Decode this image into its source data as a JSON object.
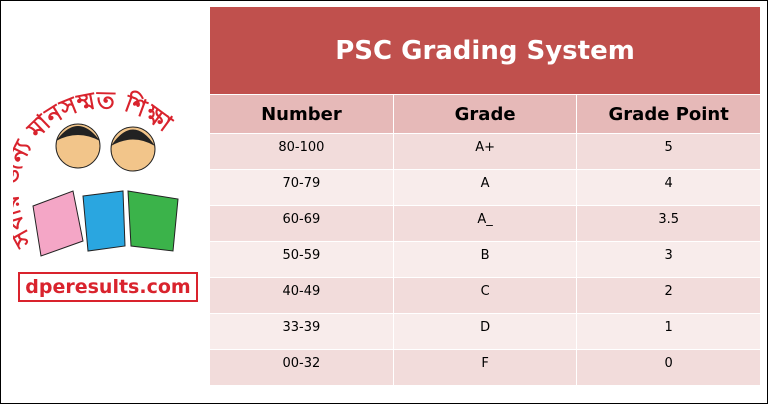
{
  "logo": {
    "tagline": "সবার জন্য মানসম্মত শিক্ষা",
    "site": "dperesults.com"
  },
  "table": {
    "title": "PSC Grading System",
    "headers": [
      "Number",
      "Grade",
      "Grade Point"
    ],
    "rows": [
      [
        "80-100",
        "A+",
        "5"
      ],
      [
        "70-79",
        "A",
        "4"
      ],
      [
        "60-69",
        "A_",
        "3.5"
      ],
      [
        "50-59",
        "B",
        "3"
      ],
      [
        "40-49",
        "C",
        "2"
      ],
      [
        "33-39",
        "D",
        "1"
      ],
      [
        "00-32",
        "F",
        "0"
      ]
    ]
  }
}
